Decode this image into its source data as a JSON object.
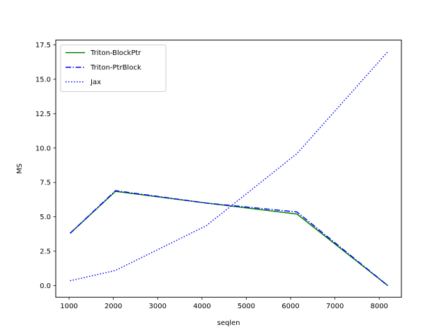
{
  "chart_data": {
    "type": "line",
    "title": "",
    "xlabel": "seqlen",
    "ylabel": "MS",
    "xlim": [
      700,
      8500
    ],
    "ylim": [
      -0.85,
      17.85
    ],
    "xticks": [
      1000,
      2000,
      3000,
      4000,
      5000,
      6000,
      7000,
      8000
    ],
    "yticks": [
      0.0,
      2.5,
      5.0,
      7.5,
      10.0,
      12.5,
      15.0,
      17.5
    ],
    "xtick_labels": [
      "1000",
      "2000",
      "3000",
      "4000",
      "5000",
      "6000",
      "7000",
      "8000"
    ],
    "ytick_labels": [
      "0.0",
      "2.5",
      "5.0",
      "7.5",
      "10.0",
      "12.5",
      "15.0",
      "17.5"
    ],
    "grid": false,
    "legend_position": "upper-left",
    "x": [
      1024,
      2048,
      4096,
      6144,
      8192
    ],
    "series": [
      {
        "name": "Triton-BlockPtr",
        "color": "#008000",
        "style": "solid",
        "values": [
          3.8,
          6.85,
          6.0,
          5.2,
          0.0
        ]
      },
      {
        "name": "Triton-PtrBlock",
        "color": "#0000ff",
        "style": "dashdot",
        "values": [
          3.8,
          6.9,
          6.0,
          5.35,
          0.0
        ]
      },
      {
        "name": "Jax",
        "color": "#0000ff",
        "style": "dotted",
        "values": [
          0.35,
          1.1,
          4.35,
          9.6,
          17.0
        ]
      }
    ]
  }
}
